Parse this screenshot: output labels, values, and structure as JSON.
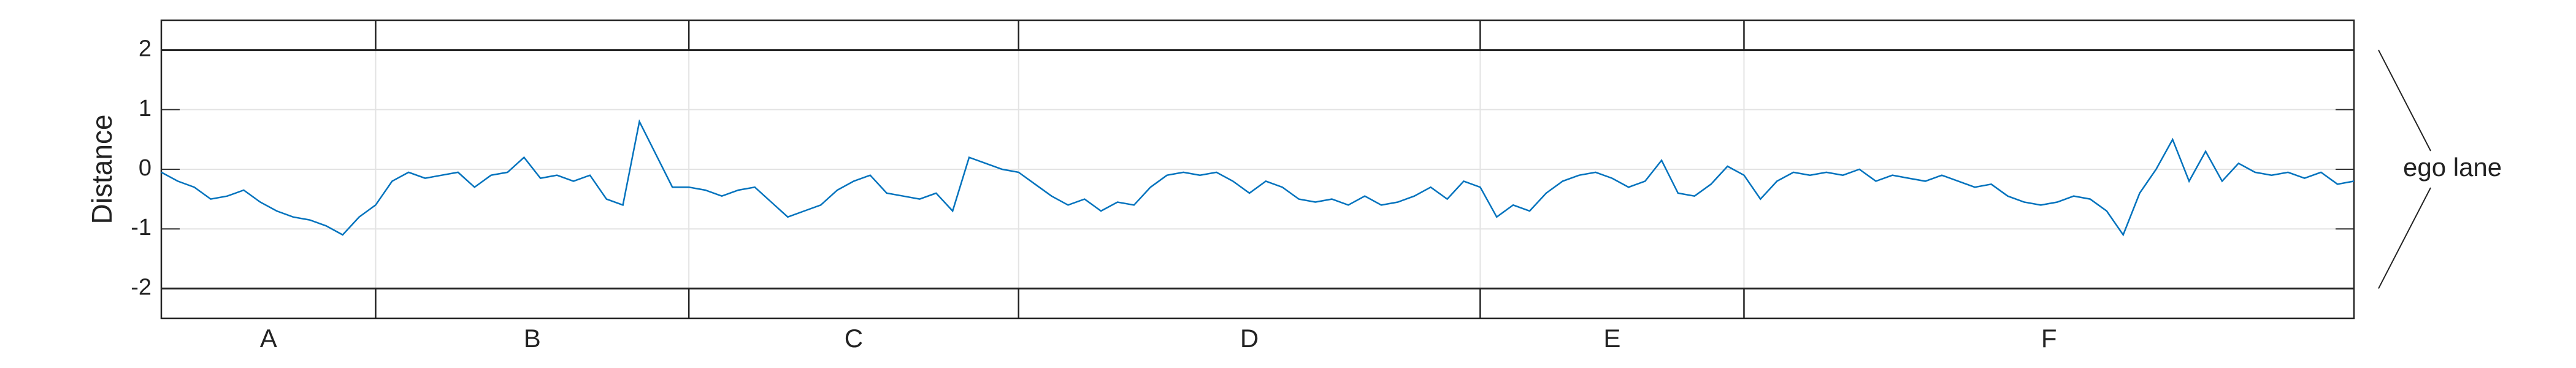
{
  "chart_data": {
    "type": "line",
    "ylabel": "Distance",
    "annotation": "ego lane",
    "ylim": [
      -2.5,
      2.5
    ],
    "yticks": [
      -2,
      -1,
      0,
      1,
      2
    ],
    "grid": true,
    "lane_bounds": [
      -2,
      2
    ],
    "segments": [
      "A",
      "B",
      "C",
      "D",
      "E",
      "F"
    ],
    "segment_boundaries": [
      13,
      32,
      52,
      80,
      96
    ],
    "series": [
      {
        "color": "#0072bd",
        "values": [
          -0.05,
          -0.2,
          -0.3,
          -0.5,
          -0.45,
          -0.35,
          -0.55,
          -0.7,
          -0.8,
          -0.85,
          -0.95,
          -1.1,
          -0.8,
          -0.6,
          -0.2,
          -0.05,
          -0.15,
          -0.1,
          -0.05,
          -0.3,
          -0.1,
          -0.05,
          0.2,
          -0.15,
          -0.1,
          -0.2,
          -0.1,
          -0.5,
          -0.6,
          0.8,
          0.25,
          -0.3,
          -0.3,
          -0.35,
          -0.45,
          -0.35,
          -0.3,
          -0.55,
          -0.8,
          -0.7,
          -0.6,
          -0.35,
          -0.2,
          -0.1,
          -0.4,
          -0.45,
          -0.5,
          -0.4,
          -0.7,
          0.2,
          0.1,
          0,
          -0.05,
          -0.25,
          -0.45,
          -0.6,
          -0.5,
          -0.7,
          -0.55,
          -0.6,
          -0.3,
          -0.1,
          -0.05,
          -0.1,
          -0.05,
          -0.2,
          -0.4,
          -0.2,
          -0.3,
          -0.5,
          -0.55,
          -0.5,
          -0.6,
          -0.45,
          -0.6,
          -0.55,
          -0.45,
          -0.3,
          -0.5,
          -0.2,
          -0.3,
          -0.8,
          -0.6,
          -0.7,
          -0.4,
          -0.2,
          -0.1,
          -0.05,
          -0.15,
          -0.3,
          -0.2,
          0.15,
          -0.4,
          -0.45,
          -0.25,
          0.05,
          -0.1,
          -0.5,
          -0.2,
          -0.05,
          -0.1,
          -0.05,
          -0.1,
          0,
          -0.2,
          -0.1,
          -0.15,
          -0.2,
          -0.1,
          -0.2,
          -0.3,
          -0.25,
          -0.45,
          -0.55,
          -0.6,
          -0.55,
          -0.45,
          -0.5,
          -0.7,
          -1.1,
          -0.4,
          0,
          0.5,
          -0.2,
          0.3,
          -0.2,
          0.1,
          -0.05,
          -0.1,
          -0.05,
          -0.15,
          -0.05,
          -0.25,
          -0.2
        ]
      }
    ]
  }
}
